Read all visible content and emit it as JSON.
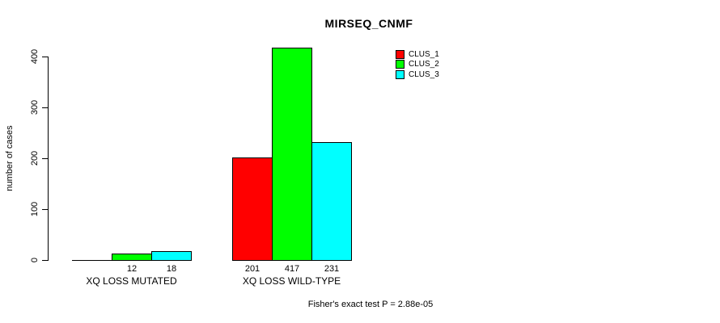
{
  "title": "MIRSEQ_CNMF",
  "footer": "Fisher's exact test P = 2.88e-05",
  "chart_data": {
    "type": "bar",
    "title": "MIRSEQ_CNMF",
    "xlabel": "",
    "ylabel": "number of cases",
    "categories": [
      "XQ LOSS MUTATED",
      "XQ LOSS WILD-TYPE"
    ],
    "series": [
      {
        "name": "CLUS_1",
        "color": "#FF0000",
        "values": [
          0,
          201
        ]
      },
      {
        "name": "CLUS_2",
        "color": "#00FF00",
        "values": [
          12,
          417
        ]
      },
      {
        "name": "CLUS_3",
        "color": "#00FFFF",
        "values": [
          18,
          231
        ]
      }
    ],
    "bar_labels": [
      [
        "",
        "12",
        "18"
      ],
      [
        "201",
        "417",
        "231"
      ]
    ],
    "yticks": [
      0,
      100,
      200,
      300,
      400
    ],
    "ylim": [
      0,
      420
    ],
    "grid": false,
    "legend_position": "top-right",
    "annotation": "Fisher's exact test P = 2.88e-05"
  }
}
